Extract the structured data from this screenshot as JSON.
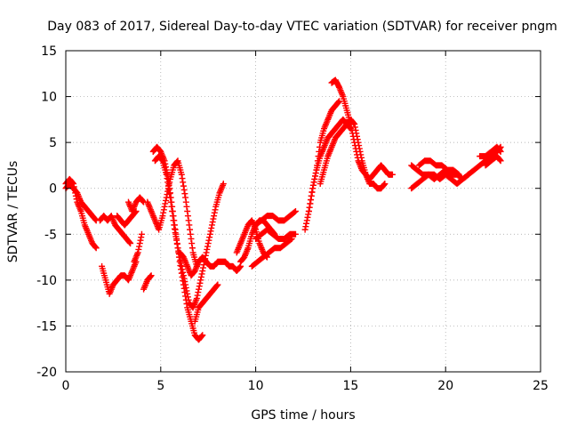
{
  "chart_data": {
    "type": "scatter",
    "title": "Day 083 of 2017, Sidereal Day-to-day VTEC variation (SDTVAR) for receiver pngm",
    "xlabel": "GPS time / hours",
    "ylabel": "SDTVAR / TECUs",
    "xlim": [
      0,
      25
    ],
    "ylim": [
      -20,
      15
    ],
    "xticks": [
      0,
      5,
      10,
      15,
      20,
      25
    ],
    "yticks": [
      -20,
      -15,
      -10,
      -5,
      0,
      5,
      10,
      15
    ],
    "grid": true,
    "marker": "plus",
    "color": "#ff0000",
    "series": [
      {
        "x": [
          0.0,
          0.2,
          0.4,
          0.6,
          0.8,
          1.0,
          1.2,
          1.4,
          1.6
        ],
        "y": [
          0.5,
          1.0,
          0.5,
          -1.5,
          -2.5,
          -4.0,
          -5.0,
          -6.0,
          -6.5
        ]
      },
      {
        "x": [
          0.0,
          0.2,
          0.4,
          0.6,
          0.8,
          1.0,
          1.2,
          1.4,
          1.6
        ],
        "y": [
          0.0,
          0.5,
          0.0,
          -0.5,
          -1.5,
          -2.0,
          -2.5,
          -3.0,
          -3.5
        ]
      },
      {
        "x": [
          1.8,
          2.0,
          2.2,
          2.4,
          2.6,
          2.8,
          3.0,
          3.2,
          3.4
        ],
        "y": [
          -3.5,
          -3.0,
          -3.5,
          -3.0,
          -4.0,
          -4.5,
          -5.0,
          -5.5,
          -6.0
        ]
      },
      {
        "x": [
          1.9,
          2.1,
          2.3,
          2.5,
          2.7,
          2.9,
          3.1,
          3.3,
          3.5,
          3.7
        ],
        "y": [
          -8.5,
          -10.0,
          -11.5,
          -10.5,
          -10.0,
          -9.5,
          -9.5,
          -10.0,
          -9.0,
          -8.0
        ]
      },
      {
        "x": [
          2.7,
          2.9,
          3.1,
          3.3,
          3.5,
          3.7
        ],
        "y": [
          -3.0,
          -3.5,
          -4.0,
          -3.5,
          -3.0,
          -2.5
        ]
      },
      {
        "x": [
          3.3,
          3.5,
          3.7,
          3.9,
          4.1
        ],
        "y": [
          -1.5,
          -2.5,
          -1.5,
          -1.0,
          -1.5
        ]
      },
      {
        "x": [
          3.6,
          3.8,
          4.0
        ],
        "y": [
          -8.0,
          -7.0,
          -5.0
        ]
      },
      {
        "x": [
          4.1,
          4.3,
          4.5
        ],
        "y": [
          -11.0,
          -10.0,
          -9.5
        ]
      },
      {
        "x": [
          4.3,
          4.5,
          4.7,
          4.9,
          5.1,
          5.3,
          5.5,
          5.7,
          5.9,
          6.1,
          6.3,
          6.5,
          6.7,
          6.9
        ],
        "y": [
          -1.5,
          -2.5,
          -3.5,
          -4.5,
          -3.0,
          -1.0,
          1.0,
          2.5,
          3.0,
          1.5,
          -1.0,
          -4.0,
          -7.0,
          -8.5
        ]
      },
      {
        "x": [
          4.6,
          4.8,
          5.0,
          5.2,
          5.4,
          5.6,
          5.8,
          6.0,
          6.2,
          6.4,
          6.6,
          6.8,
          7.0,
          7.2
        ],
        "y": [
          4.0,
          4.5,
          4.0,
          3.0,
          1.0,
          -2.0,
          -5.0,
          -8.0,
          -10.5,
          -13.0,
          -14.5,
          -16.0,
          -16.5,
          -16.0
        ]
      },
      {
        "x": [
          4.7,
          4.9,
          5.1,
          5.3,
          5.5,
          5.7,
          5.9,
          6.1,
          6.3,
          6.5,
          6.7,
          6.9,
          7.1,
          7.3,
          7.5,
          7.7,
          7.9,
          8.1,
          8.3
        ],
        "y": [
          3.0,
          3.5,
          3.0,
          1.5,
          -1.0,
          -4.0,
          -6.5,
          -8.5,
          -10.5,
          -12.5,
          -13.0,
          -12.0,
          -10.0,
          -8.0,
          -6.0,
          -4.0,
          -2.0,
          -0.5,
          0.5
        ]
      },
      {
        "x": [
          6.0,
          6.2,
          6.4,
          6.6,
          6.8,
          7.0,
          7.2,
          7.4,
          7.6,
          7.8,
          8.0,
          8.2,
          8.4,
          8.6,
          8.8,
          9.0,
          9.2
        ],
        "y": [
          -7.0,
          -7.5,
          -8.5,
          -9.5,
          -9.0,
          -8.0,
          -7.5,
          -8.0,
          -8.5,
          -8.5,
          -8.0,
          -8.0,
          -8.0,
          -8.5,
          -8.5,
          -9.0,
          -8.5
        ]
      },
      {
        "x": [
          6.8,
          7.0,
          7.2,
          7.4,
          7.6,
          7.8,
          8.0
        ],
        "y": [
          -14.5,
          -13.0,
          -12.5,
          -12.0,
          -11.5,
          -11.0,
          -10.5
        ]
      },
      {
        "x": [
          9.0,
          9.2,
          9.4,
          9.6,
          9.8,
          10.0,
          10.2,
          10.4,
          10.6
        ],
        "y": [
          -7.0,
          -6.0,
          -5.0,
          -4.0,
          -3.5,
          -4.5,
          -6.0,
          -7.0,
          -7.5
        ]
      },
      {
        "x": [
          9.2,
          9.4,
          9.6,
          9.8,
          10.0,
          10.2,
          10.4,
          10.6,
          10.8,
          11.0
        ],
        "y": [
          -8.0,
          -7.5,
          -6.5,
          -5.0,
          -4.0,
          -3.5,
          -3.5,
          -4.0,
          -4.5,
          -5.0
        ]
      },
      {
        "x": [
          10.0,
          10.3,
          10.6,
          10.9,
          11.2,
          11.5,
          11.8,
          12.1
        ],
        "y": [
          -5.5,
          -5.0,
          -4.5,
          -5.0,
          -5.5,
          -5.5,
          -5.0,
          -5.0
        ]
      },
      {
        "x": [
          10.0,
          10.3,
          10.6,
          10.9,
          11.2,
          11.5,
          11.8,
          12.1
        ],
        "y": [
          -4.0,
          -3.5,
          -3.0,
          -3.0,
          -3.5,
          -3.5,
          -3.0,
          -2.5
        ]
      },
      {
        "x": [
          9.8,
          10.1,
          10.4,
          10.7,
          11.0,
          11.3,
          11.6,
          11.9
        ],
        "y": [
          -8.5,
          -8.0,
          -7.5,
          -7.0,
          -6.5,
          -6.5,
          -6.0,
          -5.5
        ]
      },
      {
        "x": [
          12.6,
          12.8,
          13.0,
          13.2,
          13.4,
          13.6,
          13.8,
          14.0,
          14.2,
          14.4,
          14.6,
          14.8,
          15.0
        ],
        "y": [
          -4.5,
          -2.5,
          0.0,
          2.0,
          3.5,
          4.5,
          5.5,
          6.0,
          6.5,
          7.0,
          7.5,
          7.0,
          6.5
        ]
      },
      {
        "x": [
          12.8,
          13.0,
          13.2,
          13.4,
          13.6,
          13.8,
          14.0,
          14.2,
          14.4
        ],
        "y": [
          -2.5,
          0.0,
          2.0,
          5.0,
          6.5,
          7.5,
          8.5,
          9.0,
          9.5
        ]
      },
      {
        "x": [
          13.4,
          13.6,
          13.8,
          14.0,
          14.2,
          14.4,
          14.6,
          14.8,
          15.0,
          15.2,
          15.4,
          15.6,
          15.8,
          16.0,
          16.2,
          16.4,
          16.6,
          16.8
        ],
        "y": [
          0.5,
          2.0,
          3.5,
          4.5,
          5.5,
          6.0,
          6.5,
          7.0,
          7.5,
          7.0,
          5.0,
          3.0,
          1.5,
          0.5,
          0.5,
          0.0,
          0.0,
          0.5
        ]
      },
      {
        "x": [
          14.0,
          14.2,
          14.4,
          14.6,
          14.8,
          15.0,
          15.2,
          15.4,
          15.6,
          15.8,
          16.0,
          16.2,
          16.4,
          16.6,
          16.8,
          17.0,
          17.2
        ],
        "y": [
          11.5,
          11.8,
          11.0,
          10.0,
          8.5,
          7.0,
          5.0,
          3.0,
          2.0,
          1.5,
          1.0,
          1.5,
          2.0,
          2.5,
          2.0,
          1.5,
          1.5
        ]
      },
      {
        "x": [
          18.2,
          18.5,
          18.8,
          19.1,
          19.4,
          19.7,
          20.0,
          20.3,
          20.6,
          20.9,
          21.2
        ],
        "y": [
          2.5,
          2.0,
          1.5,
          1.5,
          1.0,
          1.5,
          2.0,
          1.5,
          1.5,
          1.0,
          1.5
        ]
      },
      {
        "x": [
          18.2,
          18.5,
          18.8,
          19.1,
          19.4,
          19.7,
          20.0,
          20.3,
          20.6,
          20.9,
          21.2
        ],
        "y": [
          0.0,
          0.5,
          1.0,
          1.5,
          1.5,
          1.0,
          1.5,
          1.0,
          0.5,
          1.0,
          1.5
        ]
      },
      {
        "x": [
          18.6,
          18.9,
          19.2,
          19.5,
          19.8,
          20.1,
          20.4,
          20.7
        ],
        "y": [
          2.5,
          3.0,
          3.0,
          2.5,
          2.5,
          2.0,
          2.0,
          1.5
        ]
      },
      {
        "x": [
          21.2,
          21.5,
          21.8,
          22.1,
          22.4,
          22.7,
          22.9
        ],
        "y": [
          1.5,
          2.0,
          2.5,
          3.0,
          3.5,
          4.0,
          4.5
        ]
      },
      {
        "x": [
          21.8,
          22.1,
          22.4,
          22.7,
          22.9
        ],
        "y": [
          3.5,
          3.5,
          4.0,
          4.5,
          4.0
        ]
      },
      {
        "x": [
          22.1,
          22.4,
          22.7,
          22.9
        ],
        "y": [
          2.5,
          3.0,
          3.5,
          3.0
        ]
      }
    ]
  }
}
